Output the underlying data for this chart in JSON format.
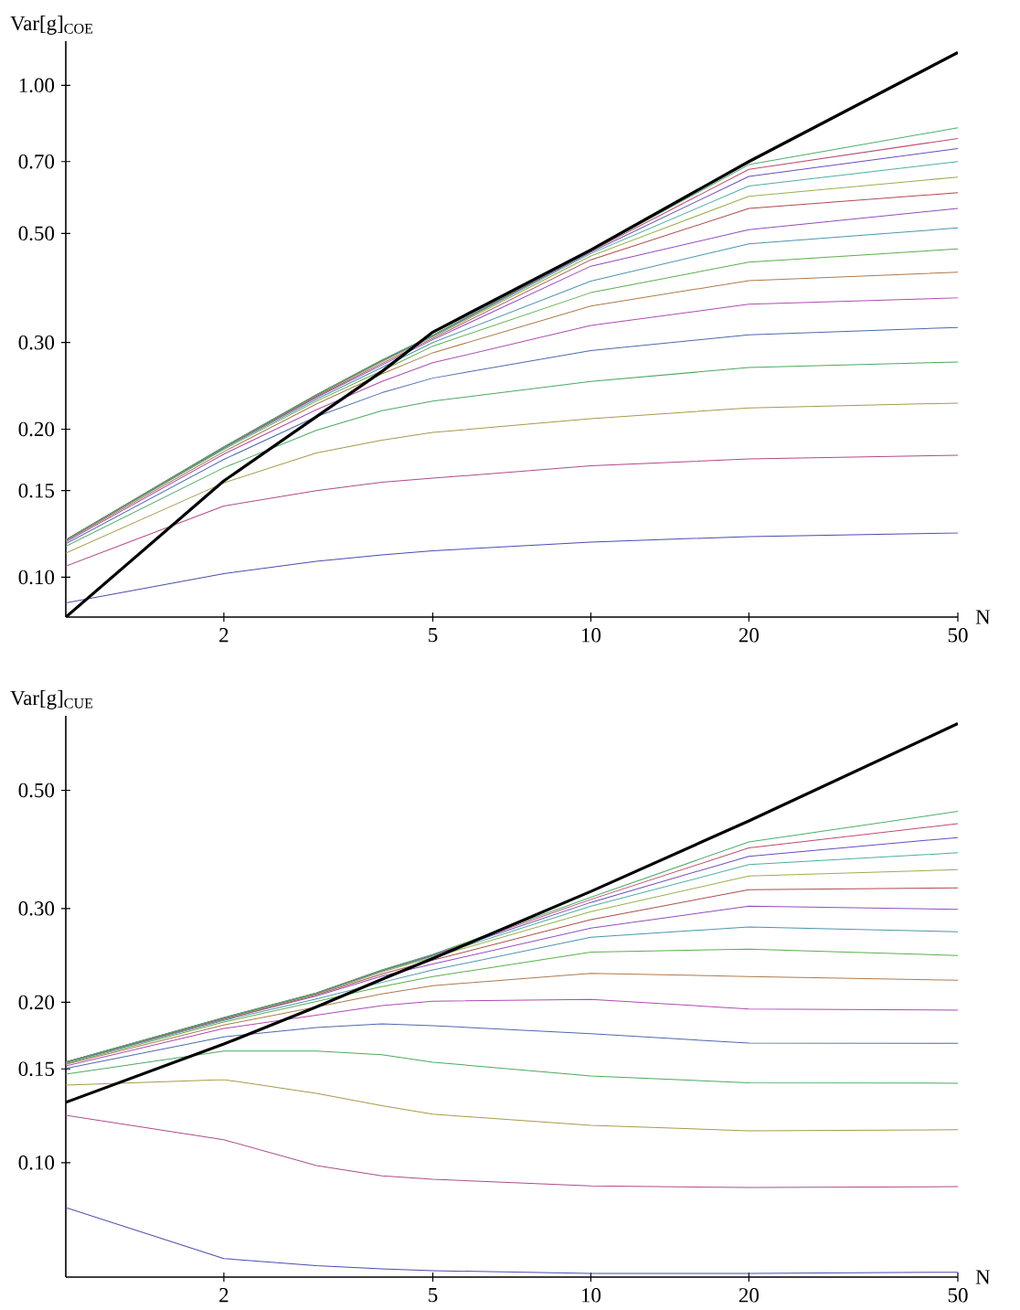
{
  "chart_data": [
    {
      "type": "line",
      "xlabel": "N",
      "ylabel": "Var[g]$_{COE}$",
      "log": "xy",
      "x": [
        1,
        2,
        3,
        4,
        5,
        10,
        20,
        50
      ],
      "xlim": [
        1,
        50
      ],
      "ylim": [
        0.083,
        1.23
      ],
      "xticks": [
        2,
        5,
        10,
        20,
        50
      ],
      "yticks": [
        {
          "value": 0.1,
          "label": "0.10"
        },
        {
          "value": 0.15,
          "label": "0.15"
        },
        {
          "value": 0.2,
          "label": "0.20"
        },
        {
          "value": 0.3,
          "label": "0.30"
        },
        {
          "value": 0.5,
          "label": "0.50"
        },
        {
          "value": 0.7,
          "label": "0.70"
        },
        {
          "value": 1.0,
          "label": "1.00"
        }
      ],
      "series": [
        {
          "color": "#4c4cb0",
          "values": [
            0.0887,
            0.1017,
            0.1077,
            0.111,
            0.1132,
            0.1179,
            0.121,
            0.123
          ]
        },
        {
          "color": "#b04c8a",
          "values": [
            0.1054,
            0.1396,
            0.15,
            0.156,
            0.159,
            0.1685,
            0.174,
            0.177
          ]
        },
        {
          "color": "#a89a4c",
          "values": [
            0.112,
            0.1556,
            0.179,
            0.19,
            0.197,
            0.21,
            0.221,
            0.226
          ]
        },
        {
          "color": "#4caa5f",
          "values": [
            0.1156,
            0.167,
            0.199,
            0.218,
            0.228,
            0.25,
            0.267,
            0.274
          ]
        },
        {
          "color": "#4c6ab0",
          "values": [
            0.117,
            0.1736,
            0.2121,
            0.2372,
            0.254,
            0.289,
            0.311,
            0.322
          ]
        },
        {
          "color": "#b04cb0",
          "values": [
            0.118,
            0.178,
            0.219,
            0.25,
            0.273,
            0.325,
            0.359,
            0.37
          ]
        },
        {
          "color": "#b07a4c",
          "values": [
            0.1186,
            0.18,
            0.225,
            0.259,
            0.286,
            0.356,
            0.401,
            0.417
          ]
        },
        {
          "color": "#5ab04c",
          "values": [
            0.119,
            0.182,
            0.228,
            0.263,
            0.295,
            0.379,
            0.437,
            0.465
          ]
        },
        {
          "color": "#4c95b0",
          "values": [
            0.119,
            0.183,
            0.23,
            0.267,
            0.3,
            0.4,
            0.476,
            0.513
          ]
        },
        {
          "color": "#944cc0",
          "values": [
            0.119,
            0.1835,
            0.232,
            0.27,
            0.304,
            0.429,
            0.509,
            0.562
          ]
        },
        {
          "color": "#b04c4c",
          "values": [
            0.119,
            0.1837,
            0.233,
            0.272,
            0.306,
            0.442,
            0.562,
            0.605
          ]
        },
        {
          "color": "#9ab04c",
          "values": [
            0.119,
            0.1838,
            0.234,
            0.274,
            0.308,
            0.45,
            0.595,
            0.651
          ]
        },
        {
          "color": "#4cb0a0",
          "values": [
            0.1191,
            0.184,
            0.2345,
            0.275,
            0.309,
            0.455,
            0.624,
            0.7
          ]
        },
        {
          "color": "#6a4cc0",
          "values": [
            0.1191,
            0.184,
            0.2347,
            0.2758,
            0.31,
            0.458,
            0.653,
            0.744
          ]
        },
        {
          "color": "#c04c6a",
          "values": [
            0.1191,
            0.184,
            0.2348,
            0.276,
            0.3103,
            0.46,
            0.675,
            0.78
          ]
        },
        {
          "color": "#4cb06a",
          "values": [
            0.1191,
            0.184,
            0.235,
            0.2765,
            0.3105,
            0.461,
            0.69,
            0.82
          ]
        },
        {
          "color": "#000000",
          "values": [
            0.083,
            0.157,
            0.212,
            0.262,
            0.315,
            0.463,
            0.7,
            1.166
          ]
        }
      ]
    },
    {
      "type": "line",
      "xlabel": "N",
      "ylabel": "Var[g]$_{CUE}$",
      "log": "xy",
      "x": [
        1,
        2,
        3,
        4,
        5,
        10,
        20,
        50
      ],
      "xlim": [
        1,
        50
      ],
      "ylim": [
        0.061,
        0.69
      ],
      "xticks": [
        2,
        5,
        10,
        20,
        50
      ],
      "yticks": [
        {
          "value": 0.1,
          "label": "0.10"
        },
        {
          "value": 0.15,
          "label": "0.15"
        },
        {
          "value": 0.2,
          "label": "0.20"
        },
        {
          "value": 0.3,
          "label": "0.30"
        },
        {
          "value": 0.5,
          "label": "0.50"
        }
      ],
      "series": [
        {
          "color": "#4c4cb0",
          "values": [
            0.0824,
            0.0661,
            0.0641,
            0.0632,
            0.0627,
            0.062,
            0.062,
            0.0623
          ]
        },
        {
          "color": "#b04c8a",
          "values": [
            0.1228,
            0.1104,
            0.0988,
            0.0945,
            0.0931,
            0.0905,
            0.0898,
            0.0902
          ]
        },
        {
          "color": "#a89a4c",
          "values": [
            0.1398,
            0.1432,
            0.135,
            0.128,
            0.1233,
            0.1175,
            0.1148,
            0.1153
          ]
        },
        {
          "color": "#4caa5f",
          "values": [
            0.1466,
            0.162,
            0.162,
            0.1595,
            0.1544,
            0.1455,
            0.1413,
            0.141
          ]
        },
        {
          "color": "#4c6ab0",
          "values": [
            0.1503,
            0.1723,
            0.1794,
            0.1823,
            0.1808,
            0.1746,
            0.1677,
            0.1676
          ]
        },
        {
          "color": "#b04cb0",
          "values": [
            0.152,
            0.1786,
            0.1892,
            0.1972,
            0.201,
            0.2026,
            0.1944,
            0.1934
          ]
        },
        {
          "color": "#b07a4c",
          "values": [
            0.153,
            0.1814,
            0.196,
            0.2074,
            0.215,
            0.2266,
            0.2236,
            0.22
          ]
        },
        {
          "color": "#5ab04c",
          "values": [
            0.1535,
            0.1837,
            0.2008,
            0.2141,
            0.2236,
            0.2484,
            0.2517,
            0.2449
          ]
        },
        {
          "color": "#4c95b0",
          "values": [
            0.154,
            0.185,
            0.203,
            0.218,
            0.23,
            0.265,
            0.277,
            0.2713
          ]
        },
        {
          "color": "#944cc0",
          "values": [
            0.1543,
            0.1858,
            0.2055,
            0.224,
            0.236,
            0.2756,
            0.303,
            0.2988
          ]
        },
        {
          "color": "#b04c4c",
          "values": [
            0.1545,
            0.186,
            0.2065,
            0.226,
            0.24,
            0.286,
            0.3254,
            0.328
          ]
        },
        {
          "color": "#9ab04c",
          "values": [
            0.1545,
            0.1865,
            0.2072,
            0.228,
            0.243,
            0.296,
            0.3453,
            0.355
          ]
        },
        {
          "color": "#4cb0a0",
          "values": [
            0.1545,
            0.187,
            0.2077,
            0.229,
            0.244,
            0.303,
            0.3626,
            0.3817
          ]
        },
        {
          "color": "#6a4cc0",
          "values": [
            0.1545,
            0.187,
            0.208,
            0.2295,
            0.245,
            0.308,
            0.376,
            0.4077
          ]
        },
        {
          "color": "#c04c6a",
          "values": [
            0.1545,
            0.1872,
            0.2082,
            0.2298,
            0.2455,
            0.312,
            0.39,
            0.4328
          ]
        },
        {
          "color": "#4cb06a",
          "values": [
            0.1545,
            0.1873,
            0.2083,
            0.23,
            0.246,
            0.315,
            0.4,
            0.4565
          ]
        },
        {
          "color": "#000000",
          "values": [
            0.1298,
            0.167,
            0.196,
            0.221,
            0.2416,
            0.323,
            0.438,
            0.667
          ]
        }
      ]
    }
  ]
}
